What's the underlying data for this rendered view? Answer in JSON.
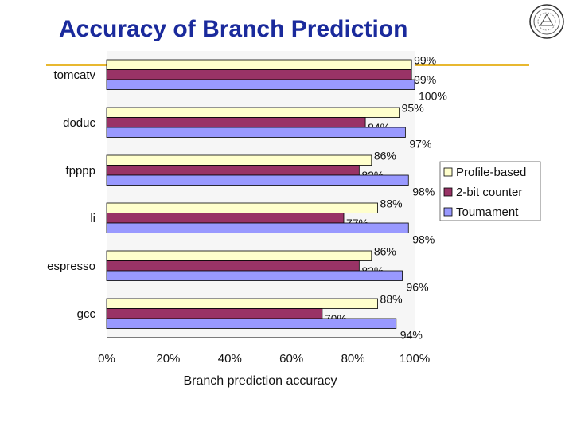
{
  "title": "Accuracy of Branch Prediction",
  "colors": {
    "title": "#1a2a9c",
    "accent_line": "#e8b830",
    "plot_background": "#f6f6f6"
  },
  "logo_icon": "university-seal-icon",
  "chart_data": {
    "type": "bar",
    "orientation": "horizontal",
    "categories": [
      "tomcatv",
      "doduc",
      "fpppp",
      "li",
      "espresso",
      "gcc"
    ],
    "series": [
      {
        "name": "Profile-based",
        "color": "#ffffcc",
        "values": [
          99,
          95,
          86,
          88,
          86,
          88
        ]
      },
      {
        "name": "2-bit counter",
        "color": "#993366",
        "values": [
          99,
          84,
          82,
          77,
          82,
          70
        ]
      },
      {
        "name": "Tournament",
        "color": "#9999ff",
        "values": [
          100,
          97,
          98,
          98,
          96,
          94
        ]
      }
    ],
    "legend_labels": [
      "Profile-based",
      "2-bit counter",
      "Toumament"
    ],
    "data_labels": [
      [
        "99%",
        "95%",
        "86%",
        "88%",
        "86%",
        "88%"
      ],
      [
        "99%",
        "84%",
        "82%",
        "77%",
        "82%",
        "70%"
      ],
      [
        "100%",
        "97%",
        "98%",
        "98%",
        "96%",
        "94%"
      ]
    ],
    "xlabel": "Branch prediction accuracy",
    "xticks": [
      "0%",
      "20%",
      "40%",
      "60%",
      "80%",
      "100%"
    ],
    "xlim": [
      0,
      100
    ],
    "grid": false,
    "legend_position": "right"
  }
}
